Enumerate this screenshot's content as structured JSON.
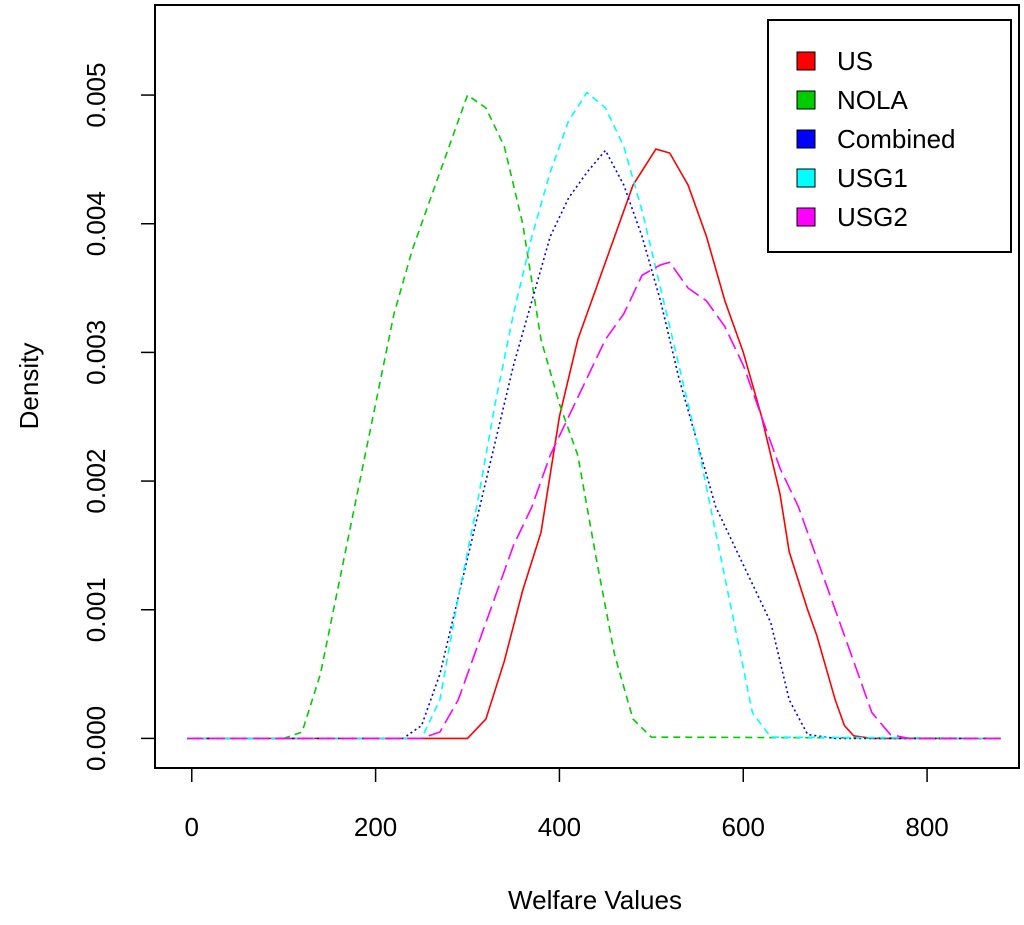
{
  "chart_data": {
    "type": "line",
    "title": "",
    "xlabel": "Welfare Values",
    "ylabel": "Density",
    "xlim": [
      -40,
      900
    ],
    "ylim": [
      -0.00023,
      0.0057
    ],
    "x_ticks": [
      0,
      200,
      400,
      600,
      800
    ],
    "y_ticks": [
      0.0,
      0.001,
      0.002,
      0.003,
      0.004,
      0.005
    ],
    "x_tick_labels": [
      "0",
      "200",
      "400",
      "600",
      "800"
    ],
    "y_tick_labels": [
      "0.000",
      "0.001",
      "0.002",
      "0.003",
      "0.004",
      "0.005"
    ],
    "grid": false,
    "legend_position": "top-right",
    "series": [
      {
        "name": "US",
        "color": "#FF0000",
        "dash": "solid",
        "points": [
          [
            -5,
            0
          ],
          [
            300,
            0
          ],
          [
            320,
            0.00015
          ],
          [
            340,
            0.0006
          ],
          [
            360,
            0.00115
          ],
          [
            380,
            0.0016
          ],
          [
            400,
            0.0025
          ],
          [
            420,
            0.0031
          ],
          [
            440,
            0.0035
          ],
          [
            460,
            0.0039
          ],
          [
            480,
            0.0043
          ],
          [
            505,
            0.00458
          ],
          [
            520,
            0.00455
          ],
          [
            540,
            0.0043
          ],
          [
            560,
            0.0039
          ],
          [
            580,
            0.0034
          ],
          [
            600,
            0.003
          ],
          [
            620,
            0.0025
          ],
          [
            640,
            0.0019
          ],
          [
            650,
            0.00145
          ],
          [
            670,
            0.001
          ],
          [
            680,
            0.0008
          ],
          [
            700,
            0.0003
          ],
          [
            710,
            0.0001
          ],
          [
            720,
            2e-05
          ],
          [
            740,
            0
          ],
          [
            880,
            0
          ]
        ]
      },
      {
        "name": "NOLA",
        "color": "#00CD00",
        "dash": "dashed",
        "points": [
          [
            -5,
            0
          ],
          [
            100,
            0
          ],
          [
            120,
            5e-05
          ],
          [
            140,
            0.0005
          ],
          [
            160,
            0.0012
          ],
          [
            180,
            0.0019
          ],
          [
            200,
            0.0026
          ],
          [
            220,
            0.0033
          ],
          [
            240,
            0.0038
          ],
          [
            260,
            0.0042
          ],
          [
            280,
            0.0046
          ],
          [
            300,
            0.005
          ],
          [
            320,
            0.0049
          ],
          [
            340,
            0.0046
          ],
          [
            360,
            0.004
          ],
          [
            380,
            0.0031
          ],
          [
            400,
            0.0026
          ],
          [
            420,
            0.0022
          ],
          [
            440,
            0.0014
          ],
          [
            460,
            0.00065
          ],
          [
            480,
            0.00015
          ],
          [
            500,
            1e-05
          ],
          [
            880,
            0
          ]
        ]
      },
      {
        "name": "Combined",
        "color": "#0000FF",
        "dash": "dotted",
        "points": [
          [
            -5,
            0
          ],
          [
            230,
            0
          ],
          [
            250,
            0.0001
          ],
          [
            270,
            0.0005
          ],
          [
            290,
            0.0011
          ],
          [
            310,
            0.0017
          ],
          [
            330,
            0.0023
          ],
          [
            350,
            0.0029
          ],
          [
            370,
            0.0034
          ],
          [
            390,
            0.0039
          ],
          [
            410,
            0.0042
          ],
          [
            430,
            0.0044
          ],
          [
            450,
            0.00457
          ],
          [
            470,
            0.0043
          ],
          [
            490,
            0.0039
          ],
          [
            510,
            0.0034
          ],
          [
            530,
            0.0028
          ],
          [
            550,
            0.0023
          ],
          [
            570,
            0.0018
          ],
          [
            590,
            0.0015
          ],
          [
            610,
            0.0012
          ],
          [
            630,
            0.0009
          ],
          [
            650,
            0.0003
          ],
          [
            670,
            3e-05
          ],
          [
            700,
            0
          ],
          [
            880,
            0
          ]
        ]
      },
      {
        "name": "USG1",
        "color": "#00FFFF",
        "dash": "dashed",
        "points": [
          [
            -5,
            0
          ],
          [
            250,
            0
          ],
          [
            270,
            0.0003
          ],
          [
            290,
            0.0011
          ],
          [
            310,
            0.0018
          ],
          [
            330,
            0.0026
          ],
          [
            350,
            0.0033
          ],
          [
            370,
            0.0039
          ],
          [
            390,
            0.0044
          ],
          [
            410,
            0.0048
          ],
          [
            430,
            0.00502
          ],
          [
            450,
            0.0049
          ],
          [
            470,
            0.0046
          ],
          [
            490,
            0.0041
          ],
          [
            510,
            0.0035
          ],
          [
            530,
            0.0029
          ],
          [
            550,
            0.0023
          ],
          [
            570,
            0.0016
          ],
          [
            590,
            0.0009
          ],
          [
            610,
            0.0002
          ],
          [
            630,
            1e-05
          ],
          [
            880,
            0
          ]
        ]
      },
      {
        "name": "USG2",
        "color": "#FF00FF",
        "dash": "longdash",
        "points": [
          [
            -5,
            0
          ],
          [
            250,
            0
          ],
          [
            270,
            5e-05
          ],
          [
            290,
            0.0003
          ],
          [
            310,
            0.0007
          ],
          [
            330,
            0.0011
          ],
          [
            350,
            0.0015
          ],
          [
            370,
            0.0018
          ],
          [
            390,
            0.0022
          ],
          [
            410,
            0.0025
          ],
          [
            430,
            0.0028
          ],
          [
            450,
            0.0031
          ],
          [
            470,
            0.0033
          ],
          [
            490,
            0.0036
          ],
          [
            510,
            0.00368
          ],
          [
            520,
            0.0037
          ],
          [
            540,
            0.0035
          ],
          [
            560,
            0.0034
          ],
          [
            580,
            0.0032
          ],
          [
            600,
            0.0029
          ],
          [
            620,
            0.0025
          ],
          [
            640,
            0.0021
          ],
          [
            660,
            0.0018
          ],
          [
            680,
            0.0014
          ],
          [
            700,
            0.001
          ],
          [
            720,
            0.0006
          ],
          [
            740,
            0.0002
          ],
          [
            760,
            3e-05
          ],
          [
            780,
            0
          ],
          [
            880,
            0
          ]
        ]
      }
    ]
  }
}
